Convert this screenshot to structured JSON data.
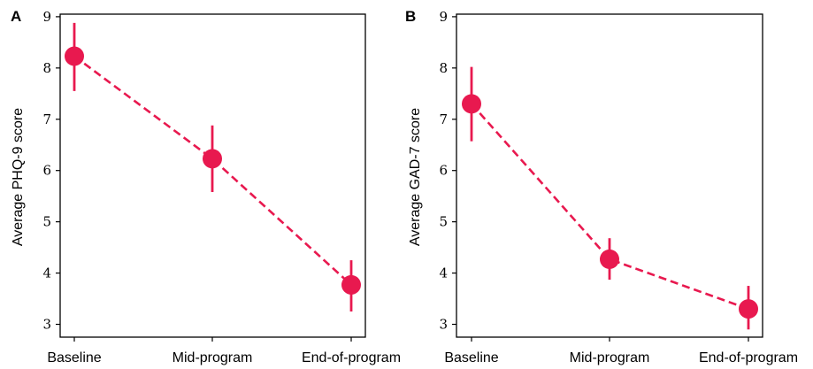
{
  "chart_data": [
    {
      "type": "line",
      "panel_label": "A",
      "ylabel": "Average PHQ-9 score",
      "xlabel": "",
      "categories": [
        "Baseline",
        "Mid-program",
        "End-of-program"
      ],
      "values": [
        8.23,
        6.23,
        3.77
      ],
      "error_low": [
        7.55,
        5.58,
        3.25
      ],
      "error_high": [
        8.88,
        6.88,
        4.25
      ],
      "ylim": [
        2.75,
        9.05
      ],
      "yticks": [
        "3",
        "4",
        "5",
        "6",
        "7",
        "8",
        "9"
      ],
      "grid": false,
      "line_style": "dashed",
      "color": "#e8194f"
    },
    {
      "type": "line",
      "panel_label": "B",
      "ylabel": "Average GAD-7 score",
      "xlabel": "",
      "categories": [
        "Baseline",
        "Mid-program",
        "End-of-program"
      ],
      "values": [
        7.3,
        4.27,
        3.3
      ],
      "error_low": [
        6.57,
        3.87,
        2.9
      ],
      "error_high": [
        8.02,
        4.68,
        3.75
      ],
      "ylim": [
        2.75,
        9.05
      ],
      "yticks": [
        "3",
        "4",
        "5",
        "6",
        "7",
        "8",
        "9"
      ],
      "grid": false,
      "line_style": "dashed",
      "color": "#e8194f"
    }
  ]
}
